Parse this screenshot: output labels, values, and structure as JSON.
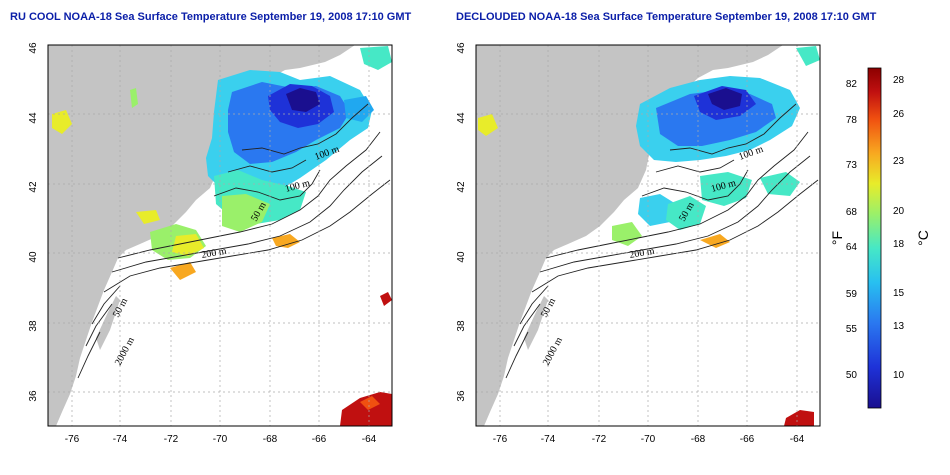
{
  "maps": [
    {
      "title": "RU COOL NOAA-18 Sea Surface Temperature September 19, 2008 17:10 GMT",
      "contour_labels": [
        "100 m",
        "100 m",
        "50 m",
        "200 m",
        "50 m",
        "2000 m"
      ]
    },
    {
      "title": "DECLOUDED NOAA-18 Sea Surface Temperature September 19, 2008 17:10 GMT",
      "contour_labels": [
        "100 m",
        "100 m",
        "50 m",
        "200 m",
        "50 m",
        "2000 m"
      ]
    }
  ],
  "axes": {
    "lat_ticks": [
      "46",
      "44",
      "42",
      "40",
      "38",
      "36"
    ],
    "lon_ticks": [
      "-76",
      "-74",
      "-72",
      "-70",
      "-68",
      "-66",
      "-64"
    ]
  },
  "colorbar": {
    "fahrenheit_ticks": [
      "82",
      "78",
      "73",
      "68",
      "64",
      "59",
      "55",
      "50"
    ],
    "celsius_ticks": [
      "28",
      "26",
      "23",
      "20",
      "18",
      "15",
      "13",
      "10"
    ],
    "fahrenheit_label": "°F",
    "celsius_label": "°C",
    "colors": [
      "#1a0f8f",
      "#1e32d8",
      "#2a78f0",
      "#28c0f0",
      "#46e8c6",
      "#9af06a",
      "#e8ec2a",
      "#f8a820",
      "#f05010",
      "#c01010",
      "#8c0000"
    ]
  },
  "land_color": "#c4c4c4"
}
